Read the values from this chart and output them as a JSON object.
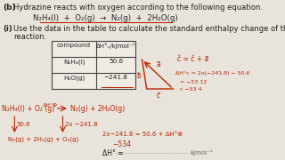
{
  "bg_color": "#e8e4dc",
  "title_b": "(b)",
  "text1": "Hydrazine reacts with oxygen according to the following equation.",
  "equation": "N₂H₄(l)  +  O₂(g)  →  N₂(g)  +  2H₂O(g)",
  "part_i": "(i)",
  "text2": "Use the data in the table to calculate the standard enthalpy change of this",
  "text3": "reaction.",
  "col1": "compound",
  "col2": "ΔH°ₑ/kJmol⁻¹",
  "row1_c": "N₂H₄(l)",
  "row1_v": "50.6",
  "row2_c": "H₂O(g)",
  "row2_v": "−241.8",
  "red": "#bb2200",
  "dark": "#222222",
  "gray": "#666666"
}
